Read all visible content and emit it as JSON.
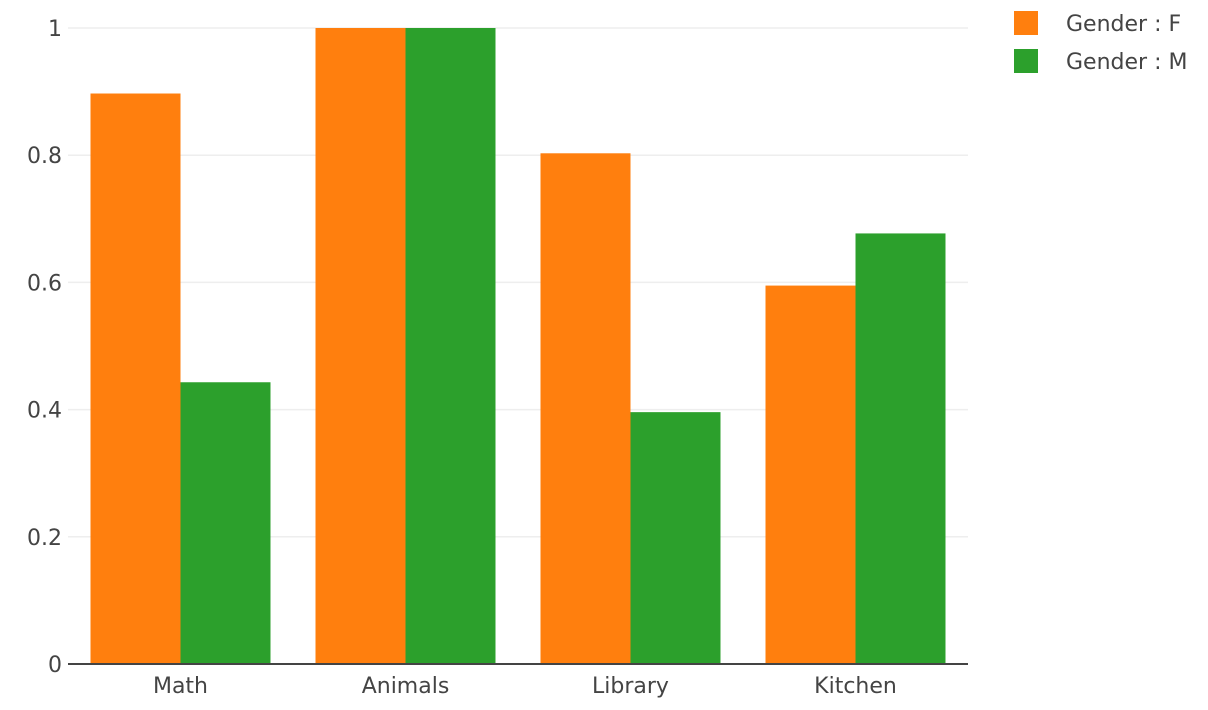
{
  "chart_data": {
    "type": "bar",
    "categories": [
      "Math",
      "Animals",
      "Library",
      "Kitchen"
    ],
    "series": [
      {
        "name": "Gender : F",
        "color": "#ff7f0e",
        "values": [
          0.897,
          1.0,
          0.803,
          0.595
        ]
      },
      {
        "name": "Gender : M",
        "color": "#2ca02c",
        "values": [
          0.443,
          1.0,
          0.396,
          0.677
        ]
      }
    ],
    "y_ticks": [
      0,
      0.2,
      0.4,
      0.6,
      0.8,
      1
    ],
    "y_tick_labels": [
      "0",
      "0.2",
      "0.4",
      "0.6",
      "0.8",
      "1"
    ],
    "ylim": [
      0,
      1.05
    ],
    "grid": true,
    "legend_position": "top-right",
    "title": "",
    "xlabel": "",
    "ylabel": ""
  }
}
